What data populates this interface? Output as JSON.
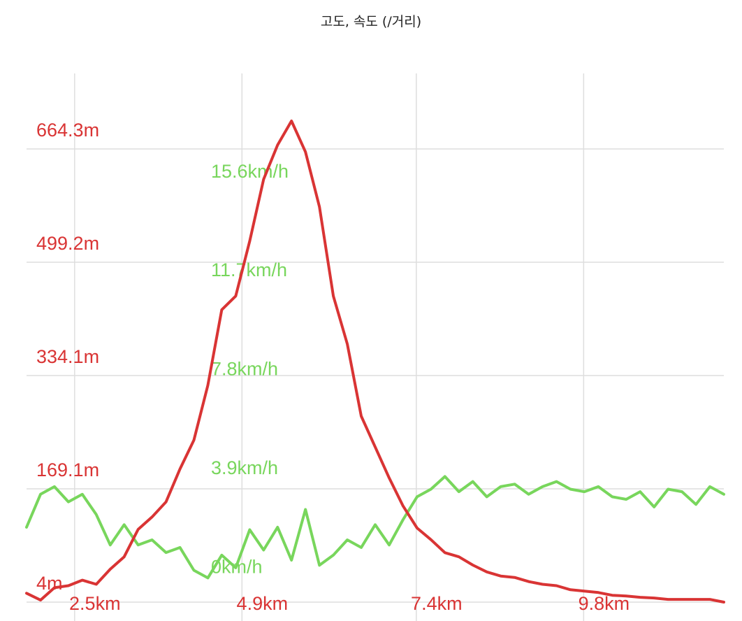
{
  "chart_data": {
    "type": "line",
    "title": "고도, 속도 (/거리)",
    "x_unit": "km",
    "x_range": [
      1.5,
      11.5
    ],
    "x_ticks": [
      2.5,
      4.9,
      7.4,
      9.8
    ],
    "x_tick_labels": [
      "2.5km",
      "4.9km",
      "7.4km",
      "9.8km"
    ],
    "grid": true,
    "series": [
      {
        "name": "고도",
        "axis": "left",
        "color": "#d93434",
        "unit": "m",
        "y_range": [
          -23.5,
          774.3
        ],
        "y_ticks": [
          4,
          169.1,
          334.1,
          499.2,
          664.3
        ],
        "y_tick_labels": [
          "4m",
          "169.1m",
          "334.1m",
          "499.2m",
          "664.3m"
        ],
        "x": [
          1.5,
          1.7,
          1.9,
          2.1,
          2.3,
          2.5,
          2.7,
          2.9,
          3.1,
          3.3,
          3.5,
          3.7,
          3.9,
          4.1,
          4.3,
          4.5,
          4.7,
          4.9,
          5.1,
          5.3,
          5.5,
          5.7,
          5.9,
          6.1,
          6.3,
          6.5,
          6.7,
          6.9,
          7.1,
          7.3,
          7.5,
          7.7,
          7.9,
          8.1,
          8.3,
          8.5,
          8.7,
          8.9,
          9.1,
          9.3,
          9.5,
          9.7,
          9.9,
          10.1,
          10.3,
          10.5,
          10.7,
          10.9,
          11.1,
          11.3,
          11.5
        ],
        "values": [
          17,
          7,
          25,
          28,
          36,
          30,
          52,
          70,
          110,
          128,
          150,
          198,
          240,
          320,
          430,
          450,
          530,
          620,
          670,
          705,
          660,
          580,
          450,
          380,
          275,
          230,
          185,
          144,
          112,
          95,
          76,
          70,
          58,
          48,
          42,
          40,
          34,
          30,
          28,
          22,
          20,
          18,
          14,
          13,
          11,
          10,
          8,
          8,
          8,
          8,
          4
        ]
      },
      {
        "name": "속도",
        "axis": "right",
        "color": "#78d65c",
        "unit": "km/h",
        "y_range": [
          -1.4,
          20.2
        ],
        "y_ticks": [
          0,
          3.9,
          7.8,
          11.7,
          15.6
        ],
        "y_tick_labels": [
          "0km/h",
          "3.9km/h",
          "7.8km/h",
          "11.7km/h",
          "15.6km/h"
        ],
        "x": [
          1.5,
          1.7,
          1.9,
          2.1,
          2.3,
          2.5,
          2.7,
          2.9,
          3.1,
          3.3,
          3.5,
          3.7,
          3.9,
          4.1,
          4.3,
          4.5,
          4.7,
          4.9,
          5.1,
          5.3,
          5.5,
          5.7,
          5.9,
          6.1,
          6.3,
          6.5,
          6.7,
          6.9,
          7.1,
          7.3,
          7.5,
          7.7,
          7.9,
          8.1,
          8.3,
          8.5,
          8.7,
          8.9,
          9.1,
          9.3,
          9.5,
          9.7,
          9.9,
          10.1,
          10.3,
          10.5,
          10.7,
          10.9,
          11.1,
          11.3,
          11.5
        ],
        "values": [
          2.3,
          3.6,
          3.9,
          3.3,
          3.6,
          2.8,
          1.6,
          2.4,
          1.6,
          1.8,
          1.3,
          1.5,
          0.6,
          0.3,
          1.2,
          0.7,
          2.2,
          1.4,
          2.3,
          1.0,
          3.0,
          0.8,
          1.2,
          1.8,
          1.5,
          2.4,
          1.6,
          2.6,
          3.5,
          3.8,
          4.3,
          3.7,
          4.1,
          3.5,
          3.9,
          4.0,
          3.6,
          3.9,
          4.1,
          3.8,
          3.7,
          3.9,
          3.5,
          3.4,
          3.7,
          3.1,
          3.8,
          3.7,
          3.2,
          3.9,
          3.6
        ]
      }
    ]
  }
}
